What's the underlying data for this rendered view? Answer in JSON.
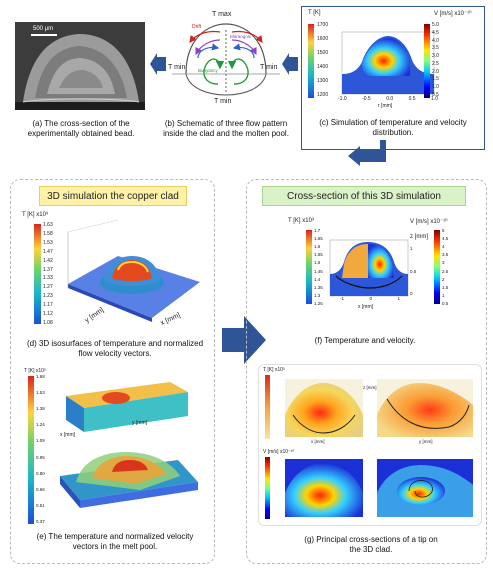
{
  "top": {
    "a_caption": "(a) The cross-section of the experimentally obtained bead.",
    "a_scale": "500 μm",
    "b_caption": "(b) Schematic of three flow pattern inside the clad and the molten pool.",
    "b_labels": {
      "tmax": "T max",
      "tmin_left": "T min",
      "tmin_right": "T min",
      "tmin_bottom": "T min",
      "drift": "Drift",
      "marangoni": "Marangoni",
      "buoyancy": "Buoyancy"
    },
    "c_caption": "(c) Simulation of temperature and velocity distribution.",
    "c_t_label": "T [K]",
    "c_v_label": "V [m/s] x10⁻¹⁰",
    "c_t_ticks": [
      "1700",
      "1600",
      "1500",
      "1400",
      "1300",
      "1200"
    ],
    "c_v_ticks": [
      "5.0",
      "4.5",
      "4.0",
      "3.5",
      "3.0",
      "2.5",
      "2.0",
      "1.5",
      "1.0",
      "0.5"
    ],
    "c_x_ticks": [
      "-1.0",
      "-0.5",
      "0.0",
      "0.5",
      "1.0"
    ],
    "c_xlabel": "r [mm]"
  },
  "left_panel": {
    "title": "3D simulation the copper clad",
    "d_caption": "(d) 3D isosurfaces of temperature and normalized flow velocity vectors.",
    "d_t_label": "T [K] x10³",
    "d_t_ticks": [
      "1.63",
      "1.58",
      "1.53",
      "1.47",
      "1.42",
      "1.37",
      "1.33",
      "1.27",
      "1.23",
      "1.17",
      "1.12",
      "1.08"
    ],
    "d_y_label": "y [mm]",
    "d_x_label": "x [mm]",
    "e_caption": "(e) The temperature and normalized velocity vectors in the melt pool.",
    "e_t_label": "T [K] x10³",
    "e_t_ticks": [
      "1.68",
      "1.53",
      "1.38",
      "1.24",
      "1.09",
      "0.95",
      "0.80",
      "0.66",
      "0.51",
      "0.37"
    ],
    "e_x_label": "x [mm]",
    "e_y_label": "y [mm]"
  },
  "right_panel": {
    "title": "Cross-section of this 3D simulation",
    "f_caption": "(f) Temperature and velocity.",
    "f_t_label": "T [K] x10³",
    "f_v_label": "V [m/s] x10⁻¹⁰",
    "f_z_label": "z [mm]",
    "f_x_label": "x [mm]",
    "f_t_ticks": [
      "1.7",
      "1.65",
      "1.6",
      "1.55",
      "1.5",
      "1.45",
      "1.4",
      "1.35",
      "1.3",
      "1.25"
    ],
    "f_v_ticks": [
      "5",
      "4.5",
      "4",
      "3.5",
      "3",
      "2.5",
      "2",
      "1.5",
      "1",
      "0.5"
    ],
    "f_z_ticks": [
      "1",
      "0.5",
      "0"
    ],
    "f_x_ticks": [
      "-1",
      "0",
      "1"
    ],
    "g_caption": "(g) Principal cross-sections of a tip on the 3D clad.",
    "g_t_label": "T [K] x10³",
    "g_v_label": "V [m/s] x10⁻¹⁰",
    "g_z_label": "z [mm]",
    "g_x_label": "x [mm]",
    "g_y_label": "y [mm]"
  },
  "colors": {
    "arrow_blue": "#2f5597",
    "header_yellow": "#fff2a8",
    "header_green": "#d9f2c7",
    "frame_blue": "#2f5597"
  }
}
